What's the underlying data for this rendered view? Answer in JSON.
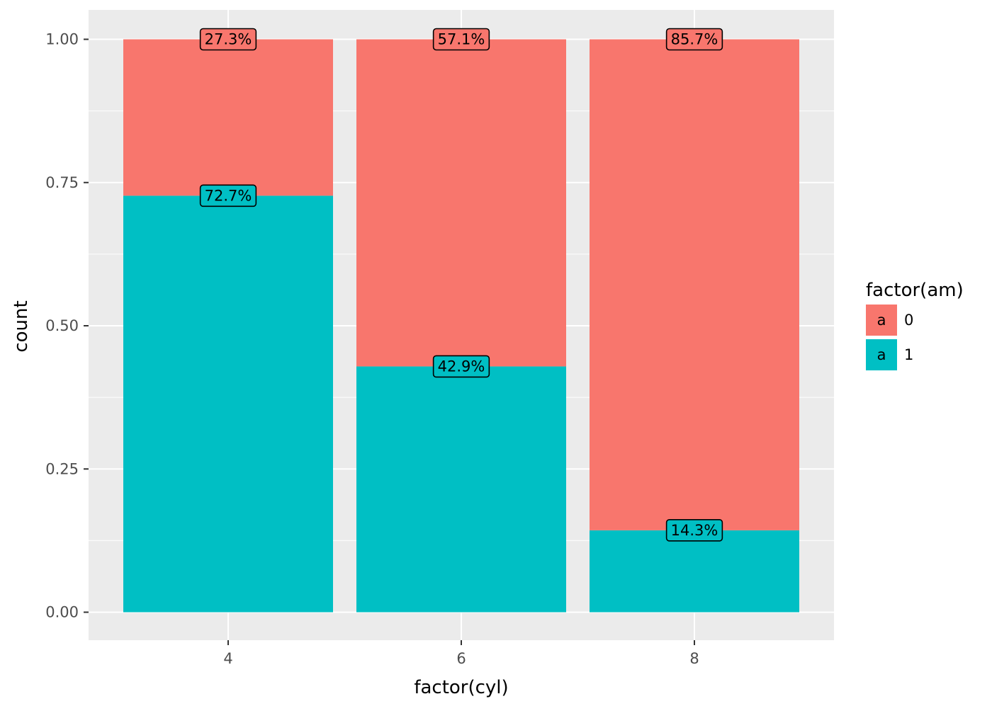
{
  "chart_data": {
    "type": "bar",
    "stacked": true,
    "position": "fill",
    "categories": [
      "4",
      "6",
      "8"
    ],
    "series": [
      {
        "name": "1",
        "values": [
          0.727,
          0.429,
          0.143
        ],
        "labels": [
          "72.7%",
          "42.9%",
          "14.3%"
        ],
        "color": "#00BFC4"
      },
      {
        "name": "0",
        "values": [
          0.273,
          0.571,
          0.857
        ],
        "labels": [
          "27.3%",
          "57.1%",
          "85.7%"
        ],
        "color": "#F8766D"
      }
    ],
    "xlabel": "factor(cyl)",
    "ylabel": "count",
    "ylim": [
      0,
      1
    ],
    "yticks": [
      0,
      0.25,
      0.5,
      0.75,
      1.0
    ],
    "ytick_labels": [
      "0.00",
      "0.25",
      "0.50",
      "0.75",
      "1.00"
    ],
    "grid": true,
    "panel_background": "#EBEBEB",
    "legend": {
      "title": "factor(am)",
      "placement": "right",
      "key_glyph": "a",
      "entries": [
        {
          "label": "0",
          "color": "#F8766D"
        },
        {
          "label": "1",
          "color": "#00BFC4"
        }
      ]
    }
  }
}
